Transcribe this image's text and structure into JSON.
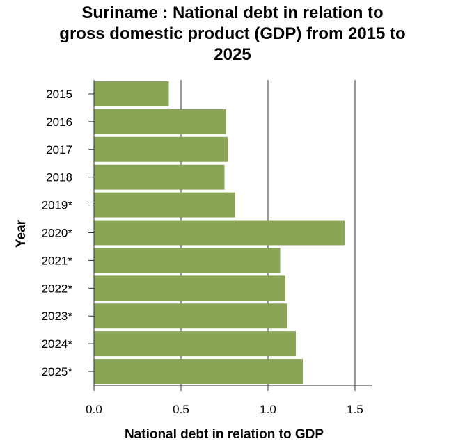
{
  "chart_data": {
    "type": "bar",
    "orientation": "horizontal",
    "title_lines": [
      "Suriname : National debt in relation to",
      "gross domestic product (GDP) from 2015 to",
      "2025"
    ],
    "xlabel": "National debt in relation to GDP",
    "ylabel": "Year",
    "categories": [
      "2015",
      "2016",
      "2017",
      "2018",
      "2019*",
      "2020*",
      "2021*",
      "2022*",
      "2023*",
      "2024*",
      "2025*"
    ],
    "values": [
      0.43,
      0.76,
      0.77,
      0.75,
      0.81,
      1.44,
      1.07,
      1.1,
      1.11,
      1.16,
      1.2
    ],
    "xlim": [
      0,
      1.6
    ],
    "xticks": [
      0.0,
      0.5,
      1.0,
      1.5
    ],
    "xtick_labels": [
      "0.0",
      "0.5",
      "1.0",
      "1.5"
    ],
    "grid": "vertical",
    "bar_color": "#8aa556",
    "grid_color": "#555555"
  }
}
